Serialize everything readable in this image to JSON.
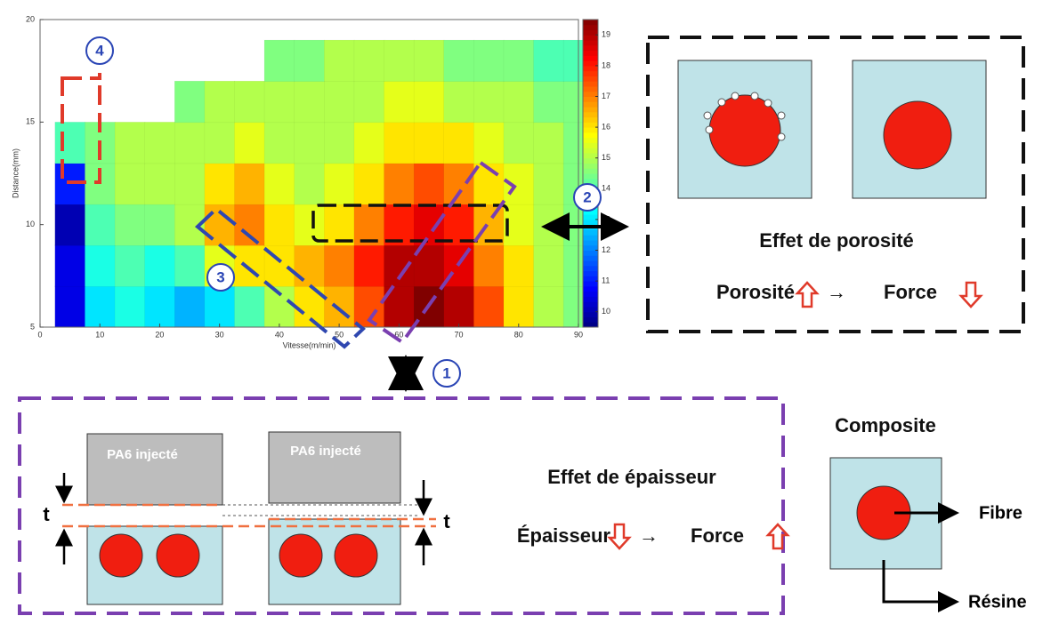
{
  "chart_data": {
    "type": "heatmap",
    "xlabel": "Vitesse(m/min)",
    "ylabel": "Distance(mm)",
    "xlim": [
      0,
      90
    ],
    "ylim": [
      5,
      20
    ],
    "xticks": [
      0,
      10,
      20,
      30,
      40,
      50,
      60,
      70,
      80,
      90
    ],
    "yticks": [
      5,
      10,
      15,
      20
    ],
    "colormap": "jet",
    "clim": [
      9.5,
      19.5
    ],
    "cticks": [
      10,
      11,
      12,
      13,
      14,
      15,
      16,
      17,
      18,
      19
    ],
    "x": [
      5,
      10,
      15,
      20,
      25,
      30,
      35,
      40,
      45,
      50,
      55,
      60,
      65,
      70,
      75,
      80,
      85,
      90
    ],
    "y": [
      6,
      8,
      10,
      12,
      14,
      16,
      18
    ],
    "z": [
      [
        10.5,
        13,
        13.5,
        13,
        12.5,
        13,
        14,
        15,
        16,
        16.5,
        17.5,
        19,
        19.5,
        19,
        17.5,
        16,
        15,
        14.5
      ],
      [
        10.5,
        13.5,
        14,
        13.5,
        14,
        15.5,
        16,
        16,
        16.5,
        17,
        18,
        19,
        19,
        18.5,
        17,
        16,
        15,
        14.5
      ],
      [
        10,
        14,
        14.5,
        14.5,
        15,
        16.5,
        17,
        16,
        15.5,
        16,
        17,
        18,
        18.5,
        18,
        16.5,
        15.5,
        15,
        14.5
      ],
      [
        11,
        14.5,
        15,
        15,
        15,
        16,
        16.5,
        15.5,
        15,
        15.5,
        16,
        17,
        17.5,
        17,
        16,
        15.5,
        15,
        14.5
      ],
      [
        14,
        14.5,
        15,
        15,
        15,
        15,
        15.5,
        15,
        15,
        15,
        15.5,
        16,
        16,
        16,
        15.5,
        15,
        15,
        14.5
      ],
      [
        null,
        null,
        null,
        null,
        14.5,
        15,
        15,
        15,
        15,
        15,
        15,
        15.5,
        15.5,
        15,
        15,
        15,
        14.5,
        14.5
      ],
      [
        null,
        null,
        null,
        null,
        null,
        null,
        null,
        14.5,
        14.5,
        15,
        15,
        15,
        15,
        14.5,
        14.5,
        14.5,
        14,
        14
      ]
    ]
  },
  "callouts": [
    "1",
    "2",
    "3",
    "4"
  ],
  "porosity_panel": {
    "title": "Effet de porosité",
    "cause": "Porosité",
    "arrow": "→",
    "effect": "Force"
  },
  "thickness_panel": {
    "block_label": "PA6 injecté",
    "thickness": "t",
    "title": "Effet de épaisseur",
    "cause": "Épaisseur",
    "arrow": "→",
    "effect": "Force"
  },
  "composite_panel": {
    "title": "Composite",
    "fiber": "Fibre",
    "resin": "Résine"
  }
}
